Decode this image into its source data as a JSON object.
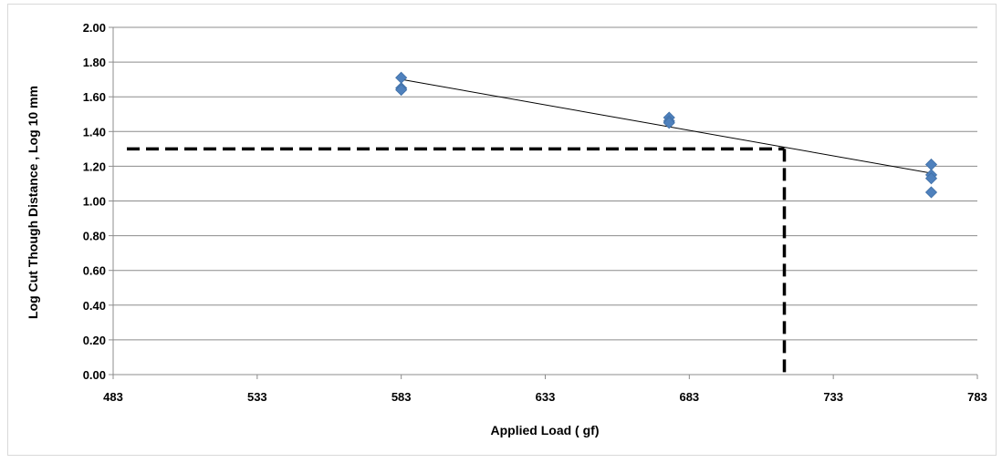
{
  "chart_data": {
    "type": "scatter",
    "title": "",
    "xlabel": "Applied Load ( gf)",
    "ylabel": "Log Cut Though Distance , Log 10 mm",
    "xlim": [
      483,
      783
    ],
    "ylim": [
      0,
      2.0
    ],
    "x_ticks": [
      "483",
      "533",
      "583",
      "633",
      "683",
      "733",
      "783"
    ],
    "y_ticks": [
      "0.00",
      "0.20",
      "0.40",
      "0.60",
      "0.80",
      "1.00",
      "1.20",
      "1.40",
      "1.60",
      "1.80",
      "2.00"
    ],
    "grid": "horizontal",
    "series": [
      {
        "marker": "diamond",
        "color": "#4f81bd",
        "points": [
          [
            583,
            1.71
          ],
          [
            583,
            1.65
          ],
          [
            583,
            1.64
          ],
          [
            676,
            1.48
          ],
          [
            676,
            1.46
          ],
          [
            676,
            1.45
          ],
          [
            767,
            1.21
          ],
          [
            767,
            1.15
          ],
          [
            767,
            1.13
          ],
          [
            767,
            1.05
          ]
        ]
      }
    ],
    "trendline": {
      "color": "#000000",
      "x": [
        583,
        767
      ],
      "y": [
        1.7,
        1.16
      ]
    },
    "reference_lines": {
      "style": "dashed",
      "color": "#000000",
      "y_value": 1.3,
      "x_value": 716
    }
  }
}
